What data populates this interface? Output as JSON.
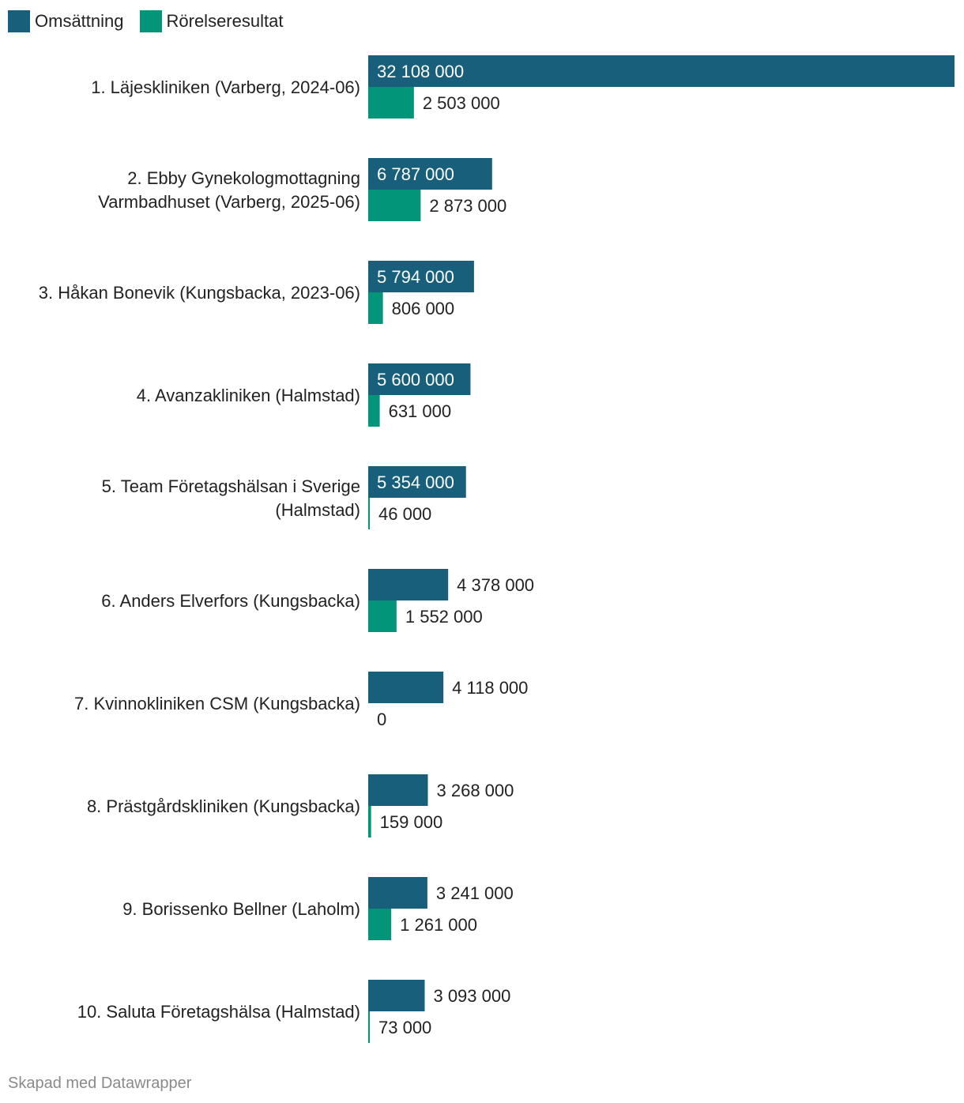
{
  "legend": {
    "series_1": "Omsättning",
    "series_2": "Rörelseresultat"
  },
  "colors": {
    "omsattning": "#185f7c",
    "rorelseresultat": "#03957a"
  },
  "footer": "Skapad med Datawrapper",
  "chart_data": {
    "type": "bar",
    "orientation": "horizontal",
    "categories": [
      [
        "1. Läjeskliniken (Varberg, 2024-06)"
      ],
      [
        "2. Ebby Gynekologmottagning",
        "Varmbadhuset (Varberg, 2025-06)"
      ],
      [
        "3. Håkan Bonevik (Kungsbacka, 2023-06)"
      ],
      [
        "4. Avanzakliniken (Halmstad)"
      ],
      [
        "5. Team Företagshälsan i Sverige",
        "(Halmstad)"
      ],
      [
        "6. Anders Elverfors (Kungsbacka)"
      ],
      [
        "7. Kvinnokliniken CSM (Kungsbacka)"
      ],
      [
        "8. Prästgårdskliniken (Kungsbacka)"
      ],
      [
        "9. Borissenko Bellner (Laholm)"
      ],
      [
        "10. Saluta Företagshälsa (Halmstad)"
      ]
    ],
    "series": [
      {
        "name": "Omsättning",
        "values": [
          32108000,
          6787000,
          5794000,
          5600000,
          5354000,
          4378000,
          4118000,
          3268000,
          3241000,
          3093000
        ],
        "labels": [
          "32 108 000",
          "6 787 000",
          "5 794 000",
          "5 600 000",
          "5 354 000",
          "4 378 000",
          "4 118 000",
          "3 268 000",
          "3 241 000",
          "3 093 000"
        ]
      },
      {
        "name": "Rörelseresultat",
        "values": [
          2503000,
          2873000,
          806000,
          631000,
          46000,
          1552000,
          0,
          159000,
          1261000,
          73000
        ],
        "labels": [
          "2 503 000",
          "2 873 000",
          "806 000",
          "631 000",
          "46 000",
          "1 552 000",
          "0",
          "159 000",
          "1 261 000",
          "73 000"
        ]
      }
    ],
    "xlim": [
      0,
      32108000
    ]
  }
}
